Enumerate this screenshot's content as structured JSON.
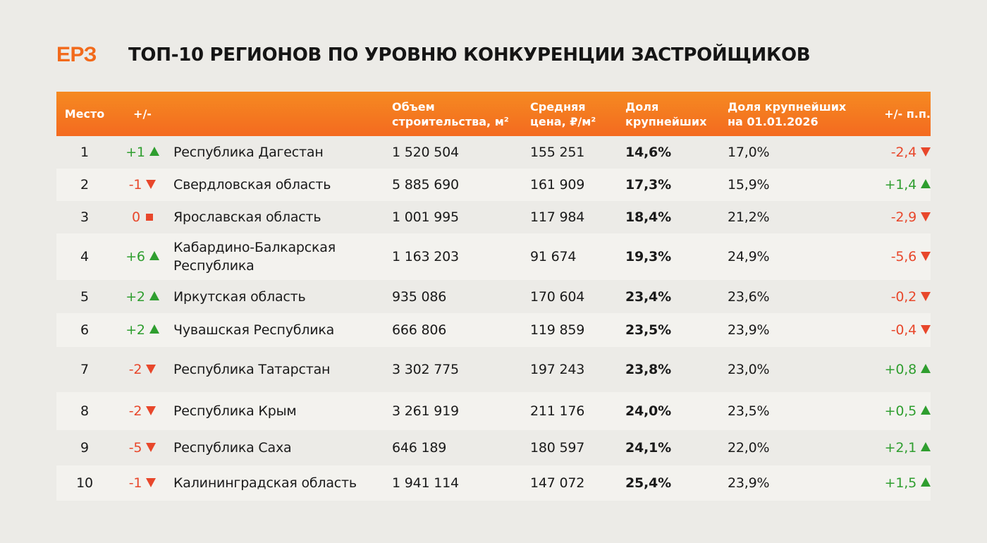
{
  "brand": {
    "logo": "ЕРЗ",
    "accent": "#f26a1b"
  },
  "title": "ТОП-10 РЕГИОНОВ ПО УРОВНЮ КОНКУРЕНЦИИ ЗАСТРОЙЩИКОВ",
  "columns": {
    "place": "Место",
    "change": "+/-",
    "region": "",
    "volume": "Объем строительства, м²",
    "price": "Средняя цена, ₽/м²",
    "share": "Доля крупнейших",
    "prev_share": "Доля крупнейших на 01.01.2026",
    "pp": "+/- п.п."
  },
  "rows": [
    {
      "place": "1",
      "change": "+1",
      "change_dir": "up",
      "region": "Республика Дагестан",
      "volume": "1 520 504",
      "price": "155 251",
      "share": "14,6%",
      "prev_share": "17,0%",
      "pp": "-2,4",
      "pp_dir": "down"
    },
    {
      "place": "2",
      "change": "-1",
      "change_dir": "down",
      "region": "Свердловская область",
      "volume": "5 885 690",
      "price": "161 909",
      "share": "17,3%",
      "prev_share": "15,9%",
      "pp": "+1,4",
      "pp_dir": "up"
    },
    {
      "place": "3",
      "change": "0",
      "change_dir": "flat",
      "region": "Ярославская область",
      "volume": "1 001 995",
      "price": "117 984",
      "share": "18,4%",
      "prev_share": "21,2%",
      "pp": "-2,9",
      "pp_dir": "down"
    },
    {
      "place": "4",
      "change": "+6",
      "change_dir": "up",
      "region": "Кабардино-Балкарская Республика",
      "volume": "1 163 203",
      "price": "91 674",
      "share": "19,3%",
      "prev_share": "24,9%",
      "pp": "-5,6",
      "pp_dir": "down"
    },
    {
      "place": "5",
      "change": "+2",
      "change_dir": "up",
      "region": "Иркутская область",
      "volume": "935 086",
      "price": "170 604",
      "share": "23,4%",
      "prev_share": "23,6%",
      "pp": "-0,2",
      "pp_dir": "down"
    },
    {
      "place": "6",
      "change": "+2",
      "change_dir": "up",
      "region": "Чувашская Республика",
      "volume": "666 806",
      "price": "119 859",
      "share": "23,5%",
      "prev_share": "23,9%",
      "pp": "-0,4",
      "pp_dir": "down"
    },
    {
      "place": "7",
      "change": "-2",
      "change_dir": "down",
      "region": "Республика Татарстан",
      "volume": "3 302 775",
      "price": "197 243",
      "share": "23,8%",
      "prev_share": "23,0%",
      "pp": "+0,8",
      "pp_dir": "up"
    },
    {
      "place": "8",
      "change": "-2",
      "change_dir": "down",
      "region": "Республика Крым",
      "volume": "3 261 919",
      "price": "211 176",
      "share": "24,0%",
      "prev_share": "23,5%",
      "pp": "+0,5",
      "pp_dir": "up"
    },
    {
      "place": "9",
      "change": "-5",
      "change_dir": "down",
      "region": "Республика Саха",
      "volume": "646 189",
      "price": "180 597",
      "share": "24,1%",
      "prev_share": "22,0%",
      "pp": "+2,1",
      "pp_dir": "up"
    },
    {
      "place": "10",
      "change": "-1",
      "change_dir": "down",
      "region": "Калининградская область",
      "volume": "1 941 114",
      "price": "147 072",
      "share": "25,4%",
      "prev_share": "23,9%",
      "pp": "+1,5",
      "pp_dir": "up"
    }
  ]
}
